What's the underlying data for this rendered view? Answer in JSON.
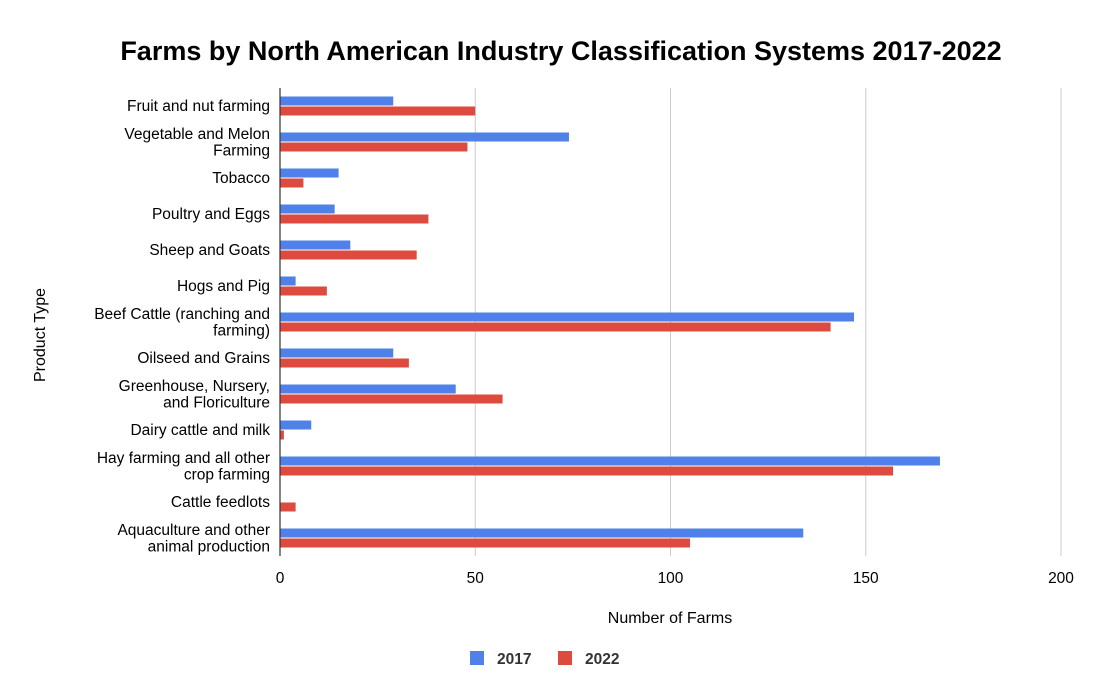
{
  "chart_data": {
    "type": "bar",
    "orientation": "horizontal",
    "title": "Farms by North American Industry Classification Systems 2017-2022",
    "xlabel": "Number of Farms",
    "ylabel": "Product Type",
    "xlim": [
      0,
      200
    ],
    "xticks": [
      "0",
      "50",
      "100",
      "150",
      "200"
    ],
    "grid": true,
    "legend_position": "bottom",
    "categories": [
      [
        "Fruit and nut farming"
      ],
      [
        "Vegetable and Melon",
        "Farming"
      ],
      [
        "Tobacco"
      ],
      [
        "Poultry and Eggs"
      ],
      [
        "Sheep and Goats"
      ],
      [
        "Hogs and Pig"
      ],
      [
        "Beef Cattle (ranching and",
        "farming)"
      ],
      [
        "Oilseed and Grains"
      ],
      [
        "Greenhouse, Nursery,",
        "and Floriculture"
      ],
      [
        "Dairy cattle and milk"
      ],
      [
        "Hay farming and all other",
        "crop farming"
      ],
      [
        "Cattle feedlots"
      ],
      [
        "Aquaculture and other",
        "animal production"
      ]
    ],
    "series": [
      {
        "name": "2017",
        "color": "#4f81e8",
        "values": [
          29,
          74,
          15,
          14,
          18,
          4,
          147,
          29,
          45,
          8,
          169,
          0,
          134
        ]
      },
      {
        "name": "2022",
        "color": "#dd4b3e",
        "values": [
          50,
          48,
          6,
          38,
          35,
          12,
          141,
          33,
          57,
          1,
          157,
          4,
          105
        ]
      }
    ]
  }
}
